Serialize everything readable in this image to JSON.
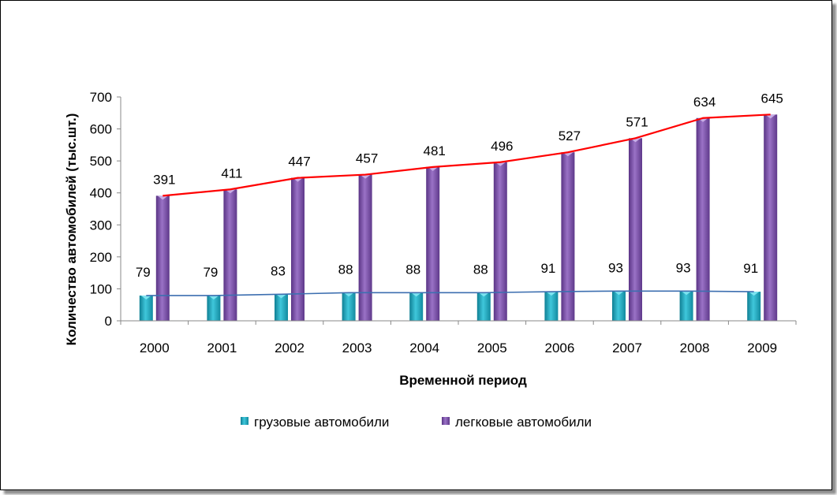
{
  "chart_data": {
    "type": "bar",
    "title": "",
    "xlabel": "Временной период",
    "ylabel": "Количество автомобилей (тыс.шт.)",
    "ylim": [
      0,
      700
    ],
    "yticks": [
      "0",
      "100",
      "200",
      "300",
      "400",
      "500",
      "600",
      "700"
    ],
    "categories": [
      "2000",
      "2001",
      "2002",
      "2003",
      "2004",
      "2005",
      "2006",
      "2007",
      "2008",
      "2009"
    ],
    "series": [
      {
        "name": "грузовые автомобили",
        "values": [
          79,
          79,
          83,
          88,
          88,
          88,
          91,
          93,
          93,
          91
        ],
        "color": "#1fa8c0",
        "line_color": "#3d6fb0"
      },
      {
        "name": "легковые автомобили",
        "values": [
          391,
          411,
          447,
          457,
          481,
          496,
          527,
          571,
          634,
          645
        ],
        "color": "#7b4fa8",
        "line_color": "#ff0000"
      }
    ],
    "grid": false,
    "legend_position": "bottom"
  }
}
